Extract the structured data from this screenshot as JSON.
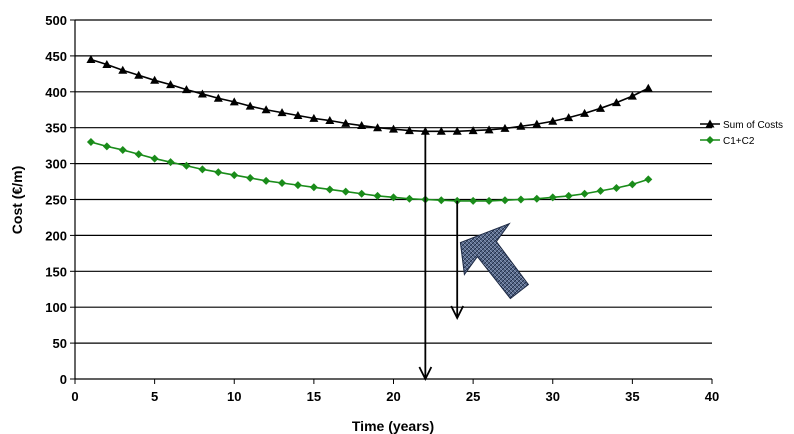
{
  "chart_data": {
    "type": "line",
    "title": "",
    "xlabel": "Time (years)",
    "ylabel": "Cost (€/m)",
    "xlim": [
      0,
      40
    ],
    "ylim": [
      0,
      500
    ],
    "x_ticks": [
      0,
      5,
      10,
      15,
      20,
      25,
      30,
      35,
      40
    ],
    "y_ticks": [
      0,
      50,
      100,
      150,
      200,
      250,
      300,
      350,
      400,
      450,
      500
    ],
    "grid": "horizontal",
    "legend_position": "right",
    "series": [
      {
        "name": "Sum of Costs",
        "color": "#000000",
        "marker": "triangle",
        "x": [
          1,
          2,
          3,
          4,
          5,
          6,
          7,
          8,
          9,
          10,
          11,
          12,
          13,
          14,
          15,
          16,
          17,
          18,
          19,
          20,
          21,
          22,
          23,
          24,
          25,
          26,
          27,
          28,
          29,
          30,
          31,
          32,
          33,
          34,
          35,
          36
        ],
        "values": [
          445,
          438,
          430,
          423,
          416,
          410,
          403,
          397,
          391,
          386,
          380,
          375,
          371,
          367,
          363,
          360,
          356,
          353,
          350,
          348,
          346,
          345,
          345,
          345,
          346,
          347,
          349,
          352,
          355,
          359,
          364,
          370,
          377,
          385,
          394,
          405
        ]
      },
      {
        "name": "C1+C2",
        "color": "#1a8c1a",
        "marker": "diamond",
        "x": [
          1,
          2,
          3,
          4,
          5,
          6,
          7,
          8,
          9,
          10,
          11,
          12,
          13,
          14,
          15,
          16,
          17,
          18,
          19,
          20,
          21,
          22,
          23,
          24,
          25,
          26,
          27,
          28,
          29,
          30,
          31,
          32,
          33,
          34,
          35,
          36
        ],
        "values": [
          330,
          324,
          319,
          313,
          307,
          302,
          297,
          292,
          288,
          284,
          280,
          276,
          273,
          270,
          267,
          264,
          261,
          258,
          255,
          253,
          251,
          250,
          249,
          248,
          248,
          248,
          249,
          250,
          251,
          253,
          255,
          258,
          262,
          266,
          271,
          278
        ]
      }
    ],
    "annotations": [
      {
        "type": "vertical-arrow",
        "x": 22,
        "y_from": 345,
        "y_to": 0,
        "color": "#000000"
      },
      {
        "type": "vertical-arrow",
        "x": 24,
        "y_from": 248,
        "y_to": 85,
        "color": "#000000"
      },
      {
        "type": "block-arrow",
        "points_to": {
          "x": 24.2,
          "y": 190
        },
        "color": "#5a6c8f"
      }
    ]
  }
}
